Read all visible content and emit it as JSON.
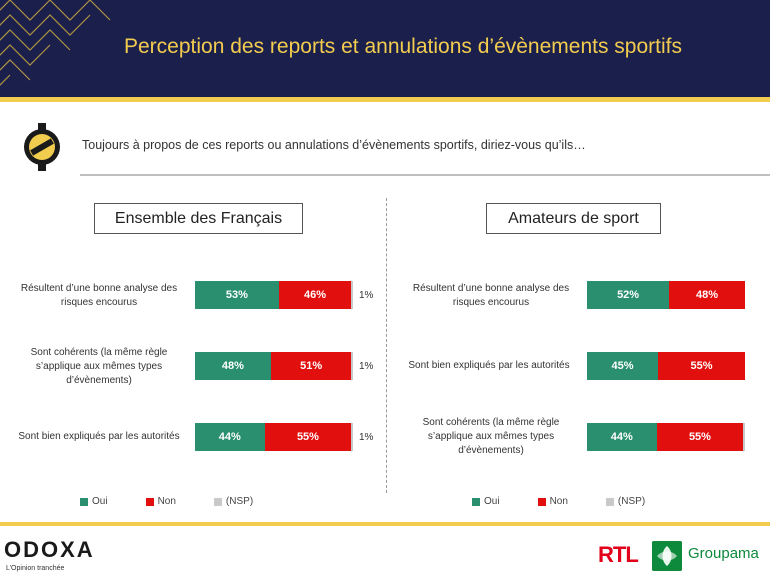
{
  "header": {
    "title": "Perception des reports et annulations d’évènements sportifs"
  },
  "question": "Toujours à propos de ces reports ou annulations d’évènements sportifs, diriez-vous qu’ils…",
  "icons": {
    "question": "silhouette-icon"
  },
  "colors": {
    "oui": "#2a8f6e",
    "non": "#e20f0f",
    "nsp": "#c9c9c9",
    "accent": "#f2cc4f",
    "header_bg": "#1b1f4b"
  },
  "chart_data": [
    {
      "type": "bar",
      "orientation": "horizontal-stacked",
      "title": "Ensemble des Français",
      "categories": [
        "Résultent d’une bonne analyse des risques encourus",
        "Sont cohérents (la même règle s’applique aux mêmes types d’évènements)",
        "Sont bien expliqués par les autorités"
      ],
      "series": [
        {
          "name": "Oui",
          "values": [
            53,
            48,
            44
          ]
        },
        {
          "name": "Non",
          "values": [
            46,
            51,
            55
          ]
        },
        {
          "name": "(NSP)",
          "values": [
            1,
            1,
            1
          ]
        }
      ],
      "labels": {
        "oui": [
          "53%",
          "48%",
          "44%"
        ],
        "non": [
          "46%",
          "51%",
          "55%"
        ],
        "nsp": [
          "1%",
          "1%",
          "1%"
        ]
      },
      "legend": "bottom"
    },
    {
      "type": "bar",
      "orientation": "horizontal-stacked",
      "title": "Amateurs de sport",
      "categories": [
        "Résultent d’une bonne analyse des risques encourus",
        "Sont bien expliqués par les autorités",
        "Sont cohérents (la même règle s’applique aux mêmes types d’évènements)"
      ],
      "series": [
        {
          "name": "Oui",
          "values": [
            52,
            45,
            44
          ]
        },
        {
          "name": "Non",
          "values": [
            48,
            55,
            55
          ]
        },
        {
          "name": "(NSP)",
          "values": [
            0,
            0,
            1
          ]
        }
      ],
      "labels": {
        "oui": [
          "52%",
          "45%",
          "44%"
        ],
        "non": [
          "48%",
          "55%",
          "55%"
        ],
        "nsp": [
          "",
          "",
          ""
        ]
      },
      "legend": "bottom"
    }
  ],
  "legend": {
    "oui": "Oui",
    "non": "Non",
    "nsp": "(NSP)"
  },
  "footer": {
    "odoxa": "ODOXA",
    "odoxa_tagline": "L’Opinion tranchée",
    "rtl": "RTL",
    "groupama": "Groupama"
  }
}
